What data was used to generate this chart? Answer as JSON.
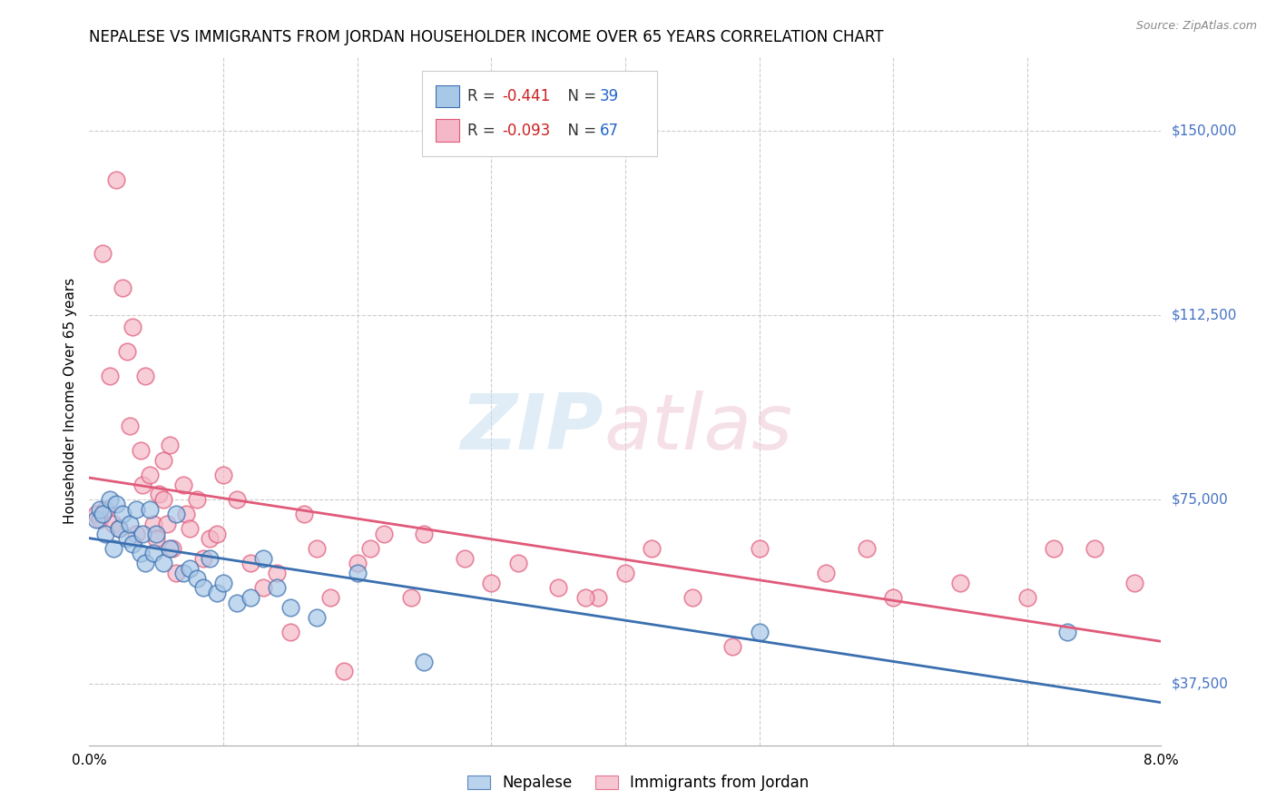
{
  "title": "NEPALESE VS IMMIGRANTS FROM JORDAN HOUSEHOLDER INCOME OVER 65 YEARS CORRELATION CHART",
  "source": "Source: ZipAtlas.com",
  "ylabel": "Householder Income Over 65 years",
  "xlim": [
    0.0,
    8.0
  ],
  "ylim": [
    25000,
    165000
  ],
  "yticks": [
    37500,
    75000,
    112500,
    150000
  ],
  "ytick_labels": [
    "$37,500",
    "$75,000",
    "$112,500",
    "$150,000"
  ],
  "legend_r_blue": "-0.441",
  "legend_n_blue": "39",
  "legend_r_pink": "-0.093",
  "legend_n_pink": "67",
  "legend_label_blue": "Nepalese",
  "legend_label_pink": "Immigrants from Jordan",
  "blue_color": "#a8c8e8",
  "pink_color": "#f4b8c8",
  "line_blue": "#3a6faf",
  "line_pink": "#e05a7a",
  "blue_scatter_x": [
    0.05,
    0.08,
    0.1,
    0.12,
    0.15,
    0.18,
    0.2,
    0.22,
    0.25,
    0.28,
    0.3,
    0.32,
    0.35,
    0.38,
    0.4,
    0.42,
    0.45,
    0.48,
    0.5,
    0.55,
    0.6,
    0.65,
    0.7,
    0.75,
    0.8,
    0.85,
    0.9,
    0.95,
    1.0,
    1.1,
    1.2,
    1.3,
    1.4,
    1.5,
    1.7,
    2.0,
    2.5,
    5.0,
    7.3
  ],
  "blue_scatter_y": [
    71000,
    73000,
    72000,
    68000,
    75000,
    65000,
    74000,
    69000,
    72000,
    67000,
    70000,
    66000,
    73000,
    64000,
    68000,
    62000,
    73000,
    64000,
    68000,
    62000,
    65000,
    72000,
    60000,
    61000,
    59000,
    57000,
    63000,
    56000,
    58000,
    54000,
    55000,
    63000,
    57000,
    53000,
    51000,
    60000,
    42000,
    48000,
    48000
  ],
  "pink_scatter_x": [
    0.05,
    0.08,
    0.1,
    0.12,
    0.15,
    0.18,
    0.2,
    0.22,
    0.25,
    0.28,
    0.3,
    0.32,
    0.35,
    0.38,
    0.4,
    0.42,
    0.45,
    0.48,
    0.5,
    0.52,
    0.55,
    0.58,
    0.6,
    0.62,
    0.65,
    0.7,
    0.72,
    0.75,
    0.8,
    0.85,
    0.9,
    0.95,
    1.0,
    1.1,
    1.2,
    1.3,
    1.4,
    1.5,
    1.6,
    1.7,
    1.8,
    1.9,
    2.0,
    2.2,
    2.4,
    2.5,
    2.8,
    3.0,
    3.2,
    3.5,
    3.8,
    4.0,
    4.2,
    4.5,
    4.8,
    5.0,
    5.5,
    6.0,
    6.5,
    7.0,
    7.2,
    7.5,
    7.8,
    3.7,
    5.8,
    2.1,
    0.55
  ],
  "pink_scatter_y": [
    72000,
    71000,
    125000,
    73000,
    100000,
    70000,
    140000,
    69000,
    118000,
    105000,
    90000,
    110000,
    68000,
    85000,
    78000,
    100000,
    80000,
    70000,
    67000,
    76000,
    83000,
    70000,
    86000,
    65000,
    60000,
    78000,
    72000,
    69000,
    75000,
    63000,
    67000,
    68000,
    80000,
    75000,
    62000,
    57000,
    60000,
    48000,
    72000,
    65000,
    55000,
    40000,
    62000,
    68000,
    55000,
    68000,
    63000,
    58000,
    62000,
    57000,
    55000,
    60000,
    65000,
    55000,
    45000,
    65000,
    60000,
    55000,
    58000,
    55000,
    65000,
    65000,
    58000,
    55000,
    65000,
    65000,
    75000
  ]
}
